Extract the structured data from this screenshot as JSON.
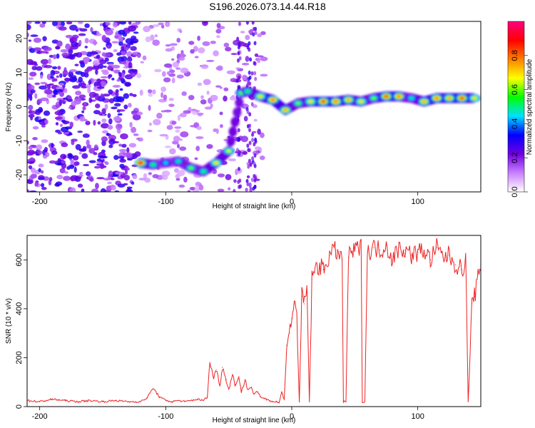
{
  "figure": {
    "title": "S196.2026.073.14.44.R18"
  },
  "chart_data": [
    {
      "type": "heatmap",
      "xlabel": "Height of straight line (km)",
      "ylabel": "Frequency (Hz)",
      "xlim": [
        -210,
        150
      ],
      "ylim": [
        -25,
        25
      ],
      "xticks": [
        -200,
        -100,
        0,
        100
      ],
      "yticks": [
        -20,
        -10,
        0,
        10,
        20
      ],
      "colorbar": {
        "label": "Normalized spectral amplitude",
        "range": [
          0,
          1
        ],
        "ticks": [
          0.0,
          0.2,
          0.4,
          0.6,
          0.8
        ],
        "colormap": [
          "#ffffff",
          "#c880ff",
          "#7000e0",
          "#0000ff",
          "#00e0ff",
          "#00ff00",
          "#ffff00",
          "#ff8000",
          "#ff0000",
          "#ff0080"
        ]
      },
      "ridge": [
        {
          "x": -120,
          "freq": -16.5,
          "amp": 0.9
        },
        {
          "x": -110,
          "freq": -17,
          "amp": 0.55
        },
        {
          "x": -100,
          "freq": -16.5,
          "amp": 0.45
        },
        {
          "x": -90,
          "freq": -16,
          "amp": 0.5
        },
        {
          "x": -80,
          "freq": -18,
          "amp": 0.6
        },
        {
          "x": -70,
          "freq": -19,
          "amp": 0.55
        },
        {
          "x": -60,
          "freq": -16.5,
          "amp": 0.7
        },
        {
          "x": -50,
          "freq": -13,
          "amp": 0.65
        },
        {
          "x": -40,
          "freq": 4,
          "amp": 0.6
        },
        {
          "x": -35,
          "freq": 4.5,
          "amp": 0.55
        },
        {
          "x": -25,
          "freq": 3,
          "amp": 0.7
        },
        {
          "x": -15,
          "freq": 2,
          "amp": 0.8
        },
        {
          "x": -5,
          "freq": -1,
          "amp": 0.75
        },
        {
          "x": 5,
          "freq": 1,
          "amp": 0.6
        },
        {
          "x": 15,
          "freq": 1.5,
          "amp": 0.7
        },
        {
          "x": 25,
          "freq": 1.5,
          "amp": 0.85
        },
        {
          "x": 35,
          "freq": 1.5,
          "amp": 0.8
        },
        {
          "x": 45,
          "freq": 2,
          "amp": 0.75
        },
        {
          "x": 55,
          "freq": 1.5,
          "amp": 0.7
        },
        {
          "x": 65,
          "freq": 2.5,
          "amp": 0.6
        },
        {
          "x": 75,
          "freq": 3,
          "amp": 0.85
        },
        {
          "x": 85,
          "freq": 3,
          "amp": 0.8
        },
        {
          "x": 95,
          "freq": 2.5,
          "amp": 0.5
        },
        {
          "x": 105,
          "freq": 1.5,
          "amp": 0.75
        },
        {
          "x": 115,
          "freq": 2.5,
          "amp": 0.8
        },
        {
          "x": 125,
          "freq": 2.5,
          "amp": 0.75
        },
        {
          "x": 135,
          "freq": 2.5,
          "amp": 0.85
        },
        {
          "x": 145,
          "freq": 2.5,
          "amp": 0.7
        }
      ]
    },
    {
      "type": "line",
      "xlabel": "Height of straight line (km)",
      "ylabel": "SNR (10 * v/v)",
      "xlim": [
        -210,
        150
      ],
      "ylim": [
        0,
        700
      ],
      "xticks": [
        -200,
        -100,
        0,
        100
      ],
      "yticks": [
        0,
        200,
        400,
        600
      ],
      "color": "#ee2222",
      "x": [
        -210,
        -200,
        -190,
        -180,
        -170,
        -160,
        -150,
        -140,
        -130,
        -120,
        -115,
        -110,
        -105,
        -100,
        -95,
        -90,
        -85,
        -80,
        -75,
        -70,
        -67,
        -65,
        -62,
        -60,
        -57,
        -55,
        -52,
        -50,
        -47,
        -45,
        -42,
        -40,
        -37,
        -35,
        -32,
        -30,
        -27,
        -25,
        -22,
        -20,
        -17,
        -15,
        -12,
        -10,
        -8,
        -6,
        -4,
        -2,
        0,
        2,
        4,
        6,
        8,
        10,
        12,
        14,
        16,
        18,
        20,
        25,
        30,
        35,
        40,
        41,
        43,
        45,
        50,
        55,
        56,
        58,
        60,
        65,
        70,
        75,
        80,
        85,
        90,
        95,
        100,
        105,
        110,
        115,
        120,
        125,
        130,
        135,
        138,
        140,
        143,
        145,
        150
      ],
      "y": [
        25,
        20,
        30,
        25,
        20,
        25,
        20,
        25,
        20,
        20,
        35,
        75,
        40,
        25,
        20,
        25,
        20,
        25,
        30,
        25,
        40,
        180,
        120,
        150,
        90,
        160,
        110,
        70,
        130,
        90,
        120,
        60,
        110,
        70,
        80,
        50,
        60,
        40,
        35,
        30,
        25,
        20,
        20,
        15,
        60,
        30,
        250,
        300,
        360,
        420,
        380,
        20,
        450,
        420,
        480,
        20,
        520,
        550,
        580,
        560,
        620,
        640,
        600,
        20,
        20,
        610,
        640,
        650,
        20,
        20,
        630,
        650,
        640,
        660,
        600,
        650,
        640,
        620,
        630,
        640,
        600,
        650,
        610,
        620,
        580,
        560,
        600,
        20,
        420,
        450,
        580
      ]
    }
  ]
}
